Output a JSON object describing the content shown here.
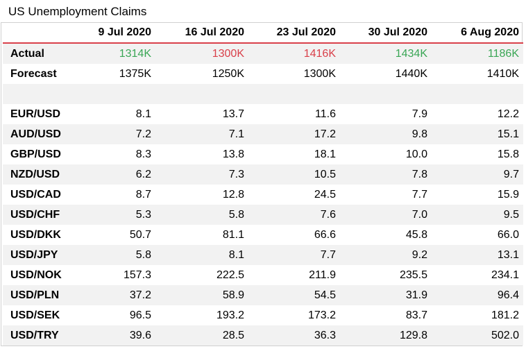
{
  "title": "US Unemployment Claims",
  "columns": [
    "9 Jul 2020",
    "16 Jul 2020",
    "23 Jul 2020",
    "30 Jul 2020",
    "6 Aug 2020"
  ],
  "colors": {
    "positive": "#3aa655",
    "negative": "#d9404a",
    "rule": "#d9404a",
    "band": "#f2f2f2"
  },
  "actual": {
    "label": "Actual",
    "values": [
      "1314K",
      "1300K",
      "1416K",
      "1434K",
      "1186K"
    ],
    "status": [
      "positive",
      "negative",
      "negative",
      "positive",
      "positive"
    ]
  },
  "forecast": {
    "label": "Forecast",
    "values": [
      "1375K",
      "1250K",
      "1300K",
      "1440K",
      "1410K"
    ]
  },
  "pairs": [
    {
      "label": "EUR/USD",
      "values": [
        "8.1",
        "13.7",
        "11.6",
        "7.9",
        "12.2"
      ]
    },
    {
      "label": "AUD/USD",
      "values": [
        "7.2",
        "7.1",
        "17.2",
        "9.8",
        "15.1"
      ]
    },
    {
      "label": "GBP/USD",
      "values": [
        "8.3",
        "13.8",
        "18.1",
        "10.0",
        "15.8"
      ]
    },
    {
      "label": "NZD/USD",
      "values": [
        "6.2",
        "7.3",
        "10.5",
        "7.8",
        "9.7"
      ]
    },
    {
      "label": "USD/CAD",
      "values": [
        "8.7",
        "12.8",
        "24.5",
        "7.7",
        "15.9"
      ]
    },
    {
      "label": "USD/CHF",
      "values": [
        "5.3",
        "5.8",
        "7.6",
        "7.0",
        "9.5"
      ]
    },
    {
      "label": "USD/DKK",
      "values": [
        "50.7",
        "81.1",
        "66.6",
        "45.8",
        "66.0"
      ]
    },
    {
      "label": "USD/JPY",
      "values": [
        "5.8",
        "8.1",
        "7.7",
        "9.2",
        "13.1"
      ]
    },
    {
      "label": "USD/NOK",
      "values": [
        "157.3",
        "222.5",
        "211.9",
        "235.5",
        "234.1"
      ]
    },
    {
      "label": "USD/PLN",
      "values": [
        "37.2",
        "58.9",
        "54.5",
        "31.9",
        "96.4"
      ]
    },
    {
      "label": "USD/SEK",
      "values": [
        "96.5",
        "193.2",
        "173.2",
        "83.7",
        "181.2"
      ]
    },
    {
      "label": "USD/TRY",
      "values": [
        "39.6",
        "28.5",
        "36.3",
        "129.8",
        "502.0"
      ]
    }
  ]
}
